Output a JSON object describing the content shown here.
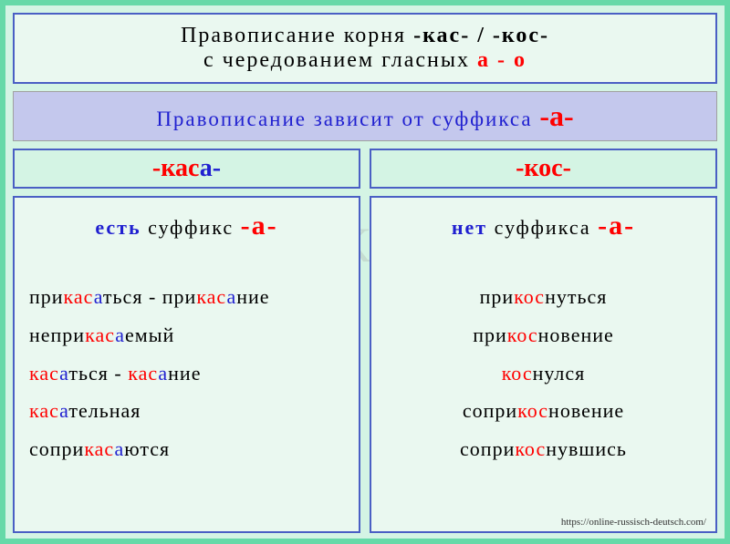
{
  "colors": {
    "outer_border": "#66d9a8",
    "outer_bg": "#d4f4e4",
    "box_border": "#4a5fc4",
    "box_bg_light": "#eaf8f0",
    "rule_bg": "#c4c8ed",
    "red": "#ff0000",
    "blue": "#2020d0",
    "text": "#000000"
  },
  "watermark": "S.Kam",
  "header": {
    "line1_pre": "Правописание   корня ",
    "line1_root": "-кас-  /  -кос-",
    "line2_pre": "с   чередованием   гласных   ",
    "line2_vowels": "а  -  о"
  },
  "rule": {
    "text": "Правописание  зависит  от  суффикса  ",
    "suffix": "-а-"
  },
  "left": {
    "header_root": "-кас",
    "header_a": "а-",
    "cond": "есть",
    "cond_rest": "  суффикс  ",
    "suffix": "-а-",
    "examples": [
      {
        "segs": [
          {
            "t": "при"
          },
          {
            "t": "кас",
            "c": "r"
          },
          {
            "t": "а",
            "c": "b"
          },
          {
            "t": "ться  -  при"
          },
          {
            "t": "кас",
            "c": "r"
          },
          {
            "t": "а",
            "c": "b"
          },
          {
            "t": "ние"
          }
        ]
      },
      {
        "segs": [
          {
            "t": "непри"
          },
          {
            "t": "кас",
            "c": "r"
          },
          {
            "t": "а",
            "c": "b"
          },
          {
            "t": "емый"
          }
        ]
      },
      {
        "segs": [
          {
            "t": "кас",
            "c": "r"
          },
          {
            "t": "а",
            "c": "b"
          },
          {
            "t": "ться   -   "
          },
          {
            "t": "кас",
            "c": "r"
          },
          {
            "t": "а",
            "c": "b"
          },
          {
            "t": "ние"
          }
        ]
      },
      {
        "segs": [
          {
            "t": "кас",
            "c": "r"
          },
          {
            "t": "а",
            "c": "b"
          },
          {
            "t": "тельная"
          }
        ]
      },
      {
        "segs": [
          {
            "t": "сопри"
          },
          {
            "t": "кас",
            "c": "r"
          },
          {
            "t": "а",
            "c": "b"
          },
          {
            "t": "ются"
          }
        ]
      }
    ]
  },
  "right": {
    "header_root": "-кос-",
    "cond": "нет",
    "cond_rest": "  суффикса  ",
    "suffix": "-а-",
    "examples": [
      {
        "segs": [
          {
            "t": "при"
          },
          {
            "t": "кос",
            "c": "r"
          },
          {
            "t": "нуться"
          }
        ]
      },
      {
        "segs": [
          {
            "t": "при"
          },
          {
            "t": "кос",
            "c": "r"
          },
          {
            "t": "новение"
          }
        ]
      },
      {
        "segs": [
          {
            "t": "кос",
            "c": "r"
          },
          {
            "t": "нулся"
          }
        ]
      },
      {
        "segs": [
          {
            "t": "сопри"
          },
          {
            "t": "кос",
            "c": "r"
          },
          {
            "t": "новение"
          }
        ]
      },
      {
        "segs": [
          {
            "t": "сопри"
          },
          {
            "t": "кос",
            "c": "r"
          },
          {
            "t": "нувшись"
          }
        ]
      }
    ],
    "attribution": "https://online-russisch-deutsch.com/"
  }
}
